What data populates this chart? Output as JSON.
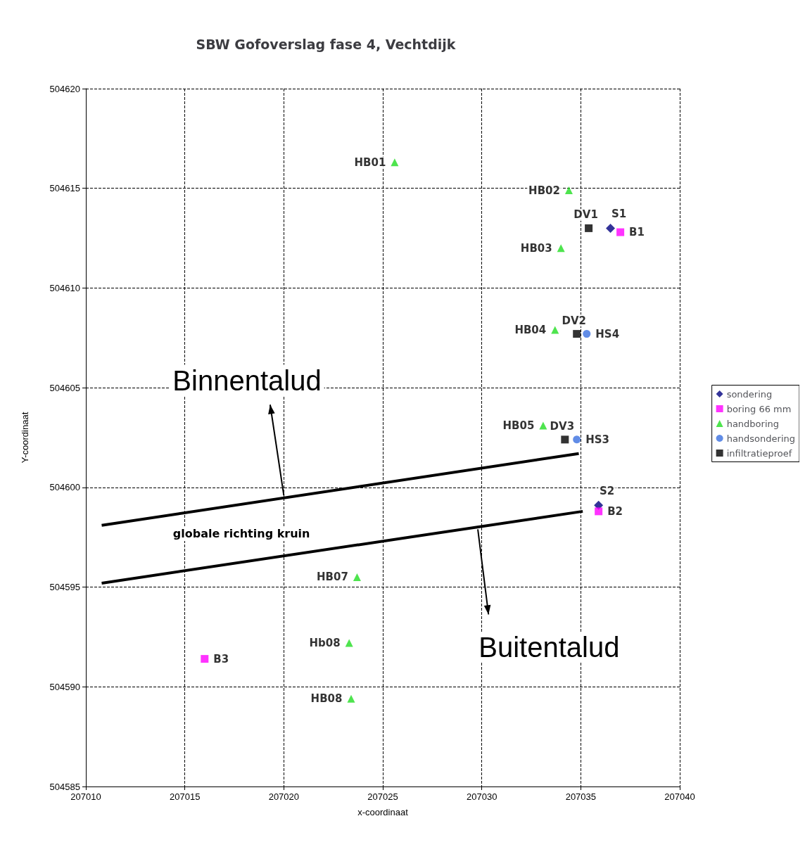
{
  "chart_data": {
    "type": "scatter",
    "title": "SBW Gofoverslag fase 4, Vechtdijk",
    "xlabel": "x-coordinaat",
    "ylabel": "Y-coordinaat",
    "xlim": [
      207010,
      207040
    ],
    "xticks": [
      207010,
      207015,
      207020,
      207025,
      207030,
      207035,
      207040
    ],
    "ylim": [
      504585,
      504620
    ],
    "yticks": [
      504585,
      504590,
      504595,
      504600,
      504605,
      504610,
      504615,
      504620
    ],
    "grid": true,
    "legend": "right",
    "series": [
      {
        "name": "sondering",
        "color": "#000080",
        "marker": "diamond",
        "x": [
          207036.5,
          207035.9
        ],
        "values": [
          504613.0,
          504599.1
        ],
        "value_labels": [
          "S1",
          "S2"
        ]
      },
      {
        "name": "boring 66 mm",
        "color": "#ff00ff",
        "marker": "square",
        "x": [
          207037.0,
          207035.9,
          207016.0
        ],
        "values": [
          504612.8,
          504598.8,
          504591.4
        ],
        "value_labels": [
          "B1",
          "B2",
          "B3"
        ]
      },
      {
        "name": "handboring",
        "color": "#22dd22",
        "marker": "triangle",
        "x": [
          207025.6,
          207034.4,
          207034.0,
          207033.7,
          207033.1,
          207023.7,
          207023.3,
          207023.4
        ],
        "values": [
          504616.3,
          504614.9,
          504612.0,
          504607.9,
          504603.1,
          504595.5,
          504592.2,
          504589.4
        ],
        "value_labels": [
          "HB01",
          "HB02",
          "HB03",
          "HB04",
          "HB05",
          "HB07",
          "Hb08",
          "HB08"
        ]
      },
      {
        "name": "handsondering",
        "color": "#3a6fe0",
        "marker": "circle",
        "x": [
          207035.3,
          207034.8
        ],
        "values": [
          504607.7,
          504602.4
        ],
        "value_labels": [
          "HS4",
          "HS3"
        ]
      },
      {
        "name": "infiltratieproef",
        "color": "#000000",
        "marker": "square",
        "x": [
          207035.4,
          207034.8,
          207034.2
        ],
        "values": [
          504613.0,
          504607.7,
          504602.4
        ],
        "value_labels": [
          "DV1",
          "DV2",
          "DV3"
        ]
      },
      {
        "type": "line",
        "color": "#000000",
        "marker": "none",
        "x": [
          207010.8,
          207034.9
        ],
        "values": [
          504598.1,
          504601.7
        ]
      },
      {
        "type": "line",
        "color": "#000000",
        "marker": "none",
        "x": [
          207010.8,
          207035.1
        ],
        "values": [
          504595.2,
          504598.8
        ]
      }
    ],
    "annotations": [
      {
        "text": "Binnentalud",
        "x": 207020.0,
        "y": 504599.6
      },
      "globale richting kruin",
      {
        "text": "Buitentalud",
        "x": 207029.8,
        "y": 504597.9
      }
    ]
  }
}
